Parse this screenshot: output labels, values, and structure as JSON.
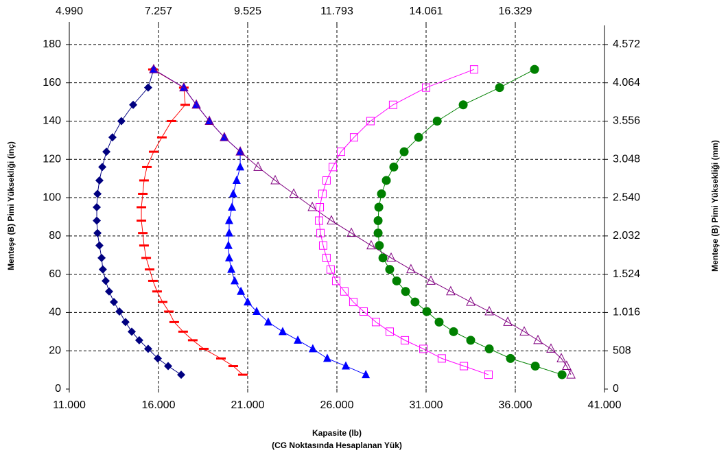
{
  "chart_data": {
    "type": "scatter",
    "x_label": "Kapasite (lb)",
    "x_sublabel": "(CG Noktasında Hesaplanan Yük)",
    "y_label": "Menteşe (B) Pimi Yüksekliği (inç)",
    "y2_label": "Menteşe (B) Pimi Yüksekliği (mm)",
    "xlim": [
      11000,
      41000
    ],
    "xticks": [
      {
        "value": 11000,
        "label": "11.000"
      },
      {
        "value": 16000,
        "label": "16.000"
      },
      {
        "value": 21000,
        "label": "21.000"
      },
      {
        "value": 26000,
        "label": "26.000"
      },
      {
        "value": 31000,
        "label": "31.000"
      },
      {
        "value": 36000,
        "label": "36.000"
      },
      {
        "value": 41000,
        "label": "41.000"
      }
    ],
    "x2lim": [
      4.99,
      18.597
    ],
    "x2ticks": [
      {
        "value": 4.99,
        "label": "4.990"
      },
      7.257,
      9.525,
      11.793,
      14.061,
      16.329
    ],
    "ylim": [
      0,
      190
    ],
    "yticks": [
      0,
      20,
      40,
      60,
      80,
      100,
      120,
      140,
      160,
      180
    ],
    "y2lim": [
      0,
      4826
    ],
    "y2ticks": [
      0,
      508,
      {
        "value": 1016,
        "label": "1.016"
      },
      {
        "value": 1524,
        "label": "1.524"
      },
      {
        "value": 2032,
        "label": "2.032"
      },
      {
        "value": 2540,
        "label": "2.540"
      },
      {
        "value": 3048,
        "label": "3.048"
      },
      {
        "value": 3556,
        "label": "3.556"
      },
      {
        "value": 4064,
        "label": "4.064"
      },
      {
        "value": 4572,
        "label": "4.572"
      }
    ],
    "grid": true,
    "y": [
      7.5,
      12,
      16,
      21,
      25.5,
      30,
      35,
      40.5,
      45.5,
      51,
      56.5,
      62.5,
      68.5,
      75,
      81.5,
      88,
      95,
      102,
      109,
      116,
      124,
      131.5,
      140,
      148.5,
      157.5,
      167
    ],
    "series": [
      {
        "color": "#000080",
        "marker": "diamond",
        "values": [
          17270,
          16540,
          15960,
          15420,
          14920,
          14500,
          14150,
          13810,
          13500,
          13230,
          13040,
          12880,
          12810,
          12690,
          12580,
          12540,
          12540,
          12580,
          12690,
          12850,
          13080,
          13420,
          13920,
          14580,
          15420,
          15730
        ]
      },
      {
        "color": "#ff0000",
        "marker": "dash",
        "values": [
          20730,
          20190,
          19500,
          18540,
          17920,
          17380,
          16880,
          16580,
          16230,
          15920,
          15690,
          15500,
          15310,
          15190,
          15120,
          15040,
          15040,
          15120,
          15190,
          15350,
          15730,
          16190,
          16730,
          17500,
          17420,
          15690
        ]
      },
      {
        "color": "#0000ff",
        "marker": "triangle",
        "values": [
          27620,
          26500,
          25460,
          24650,
          23810,
          22960,
          22150,
          21500,
          21000,
          20620,
          20270,
          20080,
          19960,
          19920,
          19960,
          19960,
          20120,
          20190,
          20380,
          20580,
          20580,
          19690,
          18850,
          18120,
          17420,
          15730
        ]
      },
      {
        "color": "#800080",
        "marker": "open-triangle",
        "values": [
          39120,
          38880,
          38580,
          38000,
          37270,
          36500,
          35580,
          34540,
          33500,
          32380,
          31270,
          30150,
          29040,
          27920,
          26810,
          25690,
          24620,
          23580,
          22540,
          21580,
          20580,
          19690,
          18850,
          18120,
          17420,
          15730
        ]
      },
      {
        "color": "#ff00ff",
        "marker": "open-square",
        "values": [
          34500,
          33120,
          31880,
          30850,
          29810,
          28960,
          28190,
          27500,
          26920,
          26420,
          25960,
          25650,
          25420,
          25230,
          25080,
          25000,
          25040,
          25190,
          25420,
          25770,
          26230,
          26960,
          27880,
          29150,
          31000,
          33690
        ]
      },
      {
        "color": "#008000",
        "marker": "circle",
        "values": [
          38620,
          37120,
          35730,
          34540,
          33500,
          32540,
          31730,
          31040,
          30380,
          29850,
          29350,
          28960,
          28580,
          28380,
          28310,
          28310,
          28350,
          28500,
          28770,
          29190,
          29770,
          30580,
          31620,
          33080,
          35120,
          37080
        ]
      }
    ]
  }
}
